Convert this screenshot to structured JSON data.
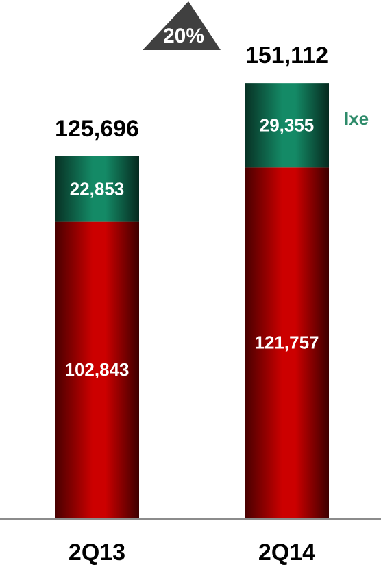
{
  "chart_data": {
    "type": "stacked_bar",
    "categories": [
      "2Q13",
      "2Q14"
    ],
    "series": [
      {
        "color": "#cc0000",
        "values": [
          102843,
          121757
        ],
        "value_labels": [
          "102,843",
          "121,757"
        ]
      },
      {
        "name": "Ixe",
        "color": "#148a66",
        "values": [
          22853,
          29355
        ],
        "value_labels": [
          "22,853",
          "29,355"
        ]
      }
    ],
    "totals": [
      125696,
      151112
    ],
    "total_labels": [
      "125,696",
      "151,112"
    ],
    "annotation": "20%",
    "ylim": [
      0,
      180000
    ]
  }
}
